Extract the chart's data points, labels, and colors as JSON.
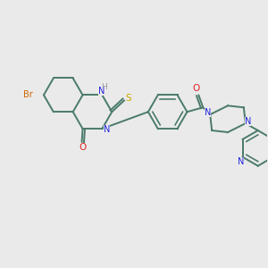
{
  "bg_color": "#eaeaea",
  "bond_color": "#4a7a6a",
  "bond_width": 1.4,
  "atom_colors": {
    "N": "#2222dd",
    "O": "#dd2222",
    "S": "#ccaa00",
    "Br": "#cc6600",
    "H": "#999999",
    "C": "#4a7a6a"
  },
  "figsize": [
    3.0,
    3.0
  ],
  "dpi": 100
}
